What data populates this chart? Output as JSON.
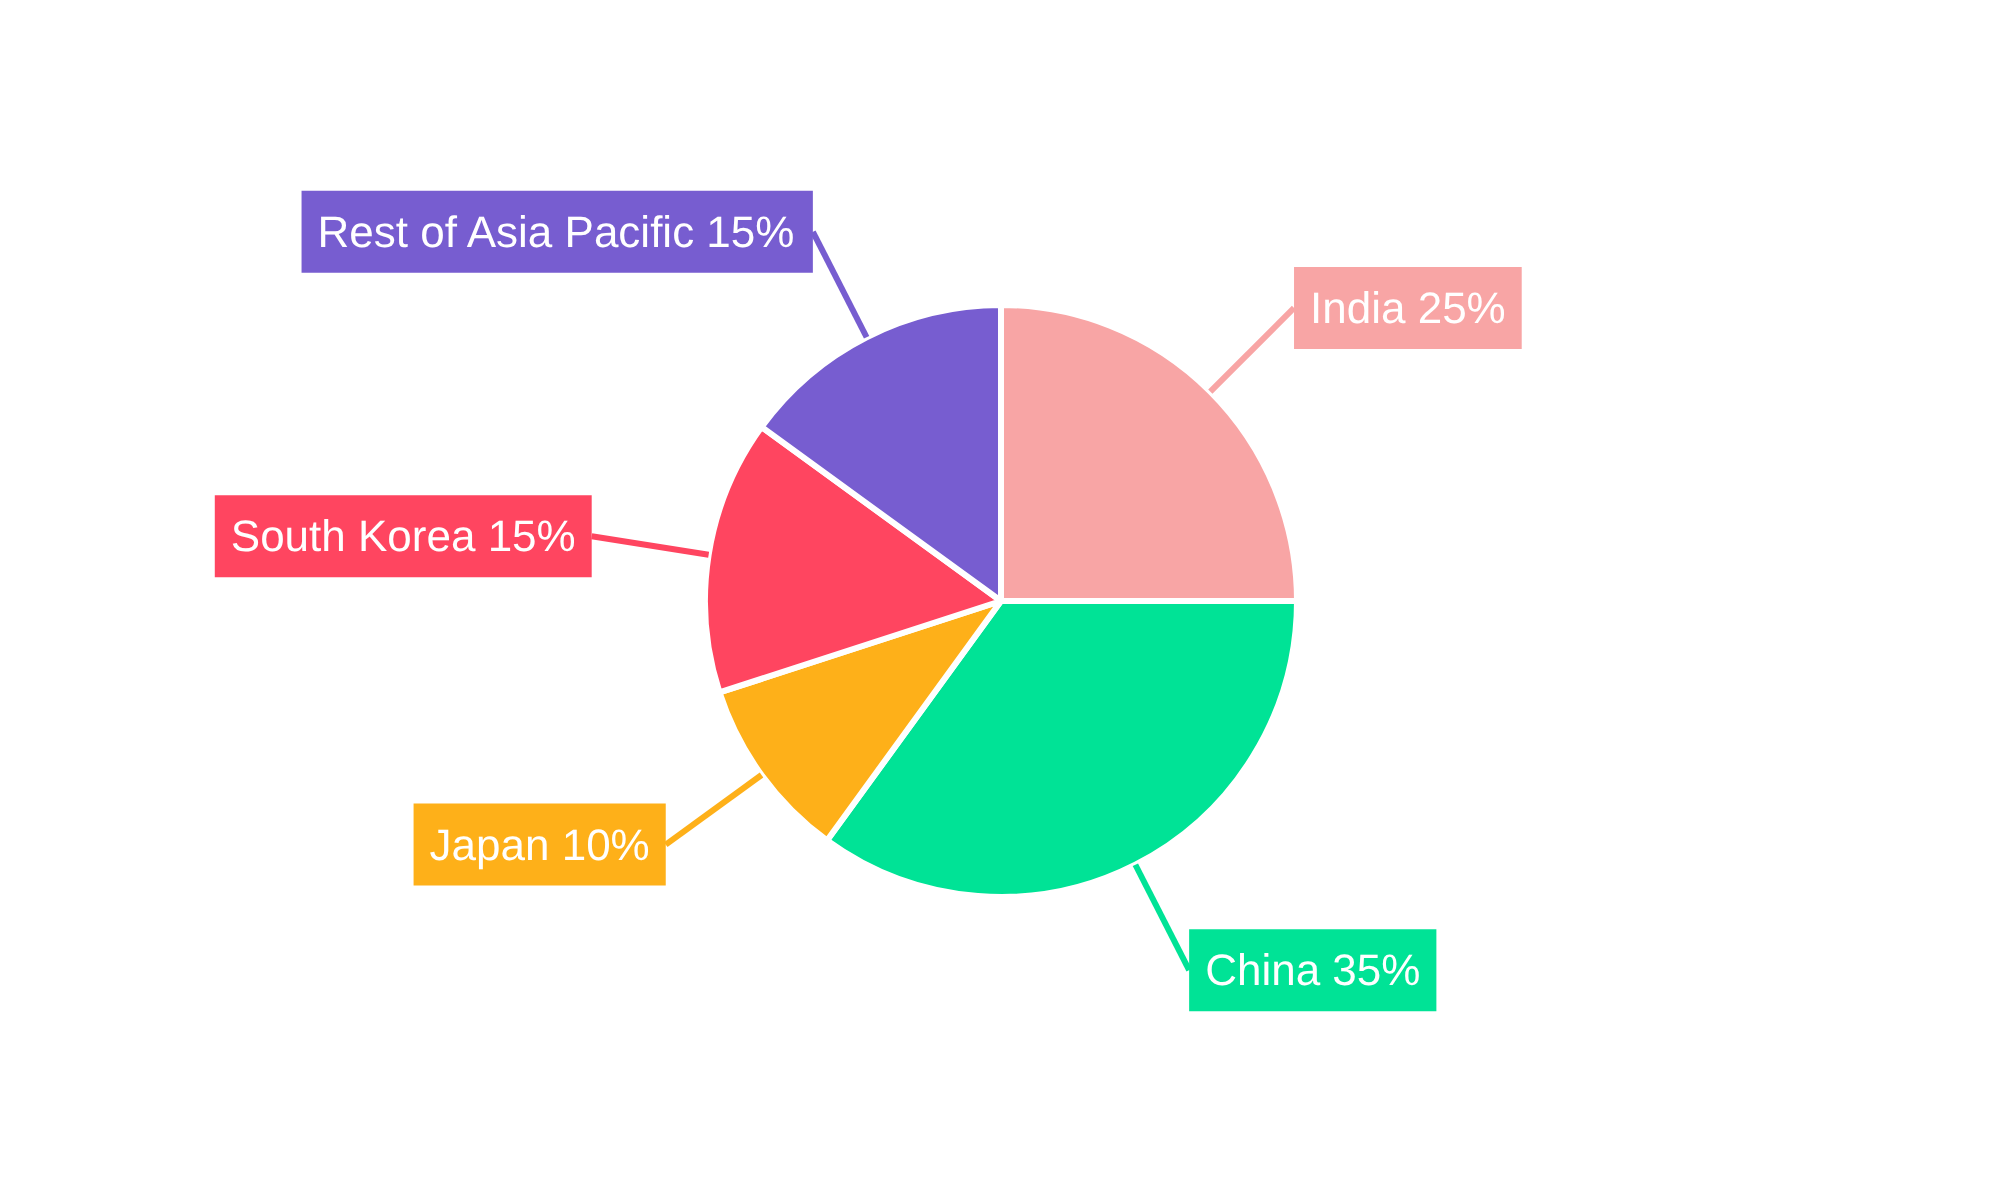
{
  "chart_data": {
    "type": "pie",
    "categories": [
      "India",
      "China",
      "Japan",
      "South Korea",
      "Rest of Asia Pacific"
    ],
    "values": [
      25,
      35,
      10,
      15,
      15
    ],
    "colors": [
      "#f8a5a5",
      "#00e396",
      "#feb019",
      "#ff4560",
      "#775dd0"
    ],
    "value_labels": [
      "25%",
      "35%",
      "10%",
      "15%",
      "15%"
    ]
  }
}
